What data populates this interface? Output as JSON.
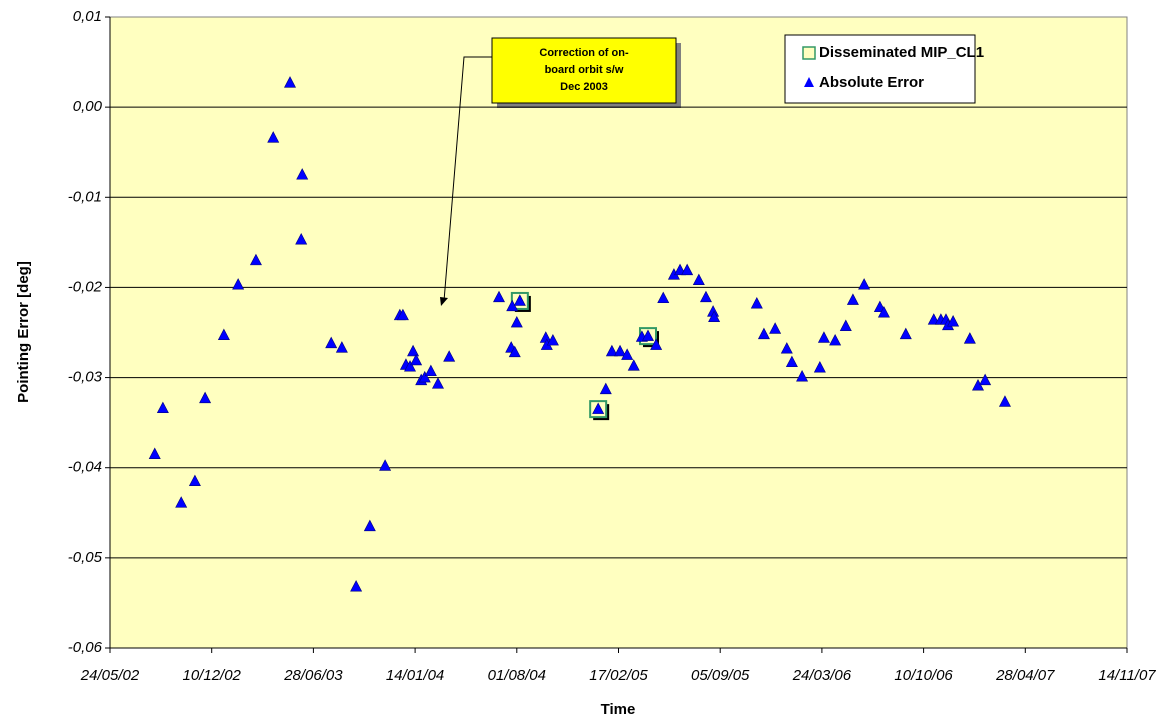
{
  "chart_data": {
    "type": "scatter",
    "x_label": "Time",
    "y_label": "Pointing Error [deg]",
    "annotation": [
      "Correction of on-",
      "board orbit s/w",
      "Dec 2003"
    ],
    "xlim": [
      "24/05/02",
      "14/11/07"
    ],
    "xticks": [
      "24/05/02",
      "10/12/02",
      "28/06/03",
      "14/01/04",
      "01/08/04",
      "17/02/05",
      "05/09/05",
      "24/03/06",
      "10/10/06",
      "28/04/07",
      "14/11/07"
    ],
    "ylim": [
      -0.06,
      0.01
    ],
    "yticks": [
      {
        "value": -0.06,
        "label": "-0,06"
      },
      {
        "value": -0.05,
        "label": "-0,05"
      },
      {
        "value": -0.04,
        "label": "-0,04"
      },
      {
        "value": -0.03,
        "label": "-0,03"
      },
      {
        "value": -0.02,
        "label": "-0,02"
      },
      {
        "value": -0.01,
        "label": "-0,01"
      },
      {
        "value": 0,
        "label": "0,00"
      },
      {
        "value": 0.01,
        "label": "0,01"
      }
    ],
    "grid": true,
    "series": [
      {
        "name": "Disseminated MIP_CL1",
        "marker": "square",
        "color": "#339966",
        "x": [
          "07/08/04",
          "08/01/05",
          "16/04/05"
        ],
        "values": [
          -0.0215,
          -0.0335,
          -0.0254
        ]
      },
      {
        "name": "Absolute Error",
        "marker": "triangle",
        "color": "#0000ff",
        "x": [
          "20/08/02",
          "05/09/02",
          "11/10/02",
          "07/11/02",
          "27/11/02",
          "03/01/03",
          "31/01/03",
          "07/03/03",
          "10/04/03",
          "13/05/03",
          "06/06/03",
          "04/06/03",
          "02/08/03",
          "23/08/03",
          "20/09/03",
          "17/10/03",
          "16/11/03",
          "15/12/03",
          "21/12/03",
          "27/12/03",
          "04/01/04",
          "10/01/04",
          "16/01/04",
          "26/01/04",
          "02/02/04",
          "14/02/04",
          "28/02/04",
          "21/03/04",
          "27/06/04",
          "21/07/04",
          "23/07/04",
          "28/07/04",
          "01/08/04",
          "07/08/04",
          "27/09/04",
          "29/09/04",
          "11/10/04",
          "08/01/05",
          "23/01/05",
          "04/02/05",
          "20/02/05",
          "06/03/05",
          "19/03/05",
          "04/04/05",
          "16/04/05",
          "02/05/05",
          "16/05/05",
          "06/06/05",
          "18/06/05",
          "02/07/05",
          "25/07/05",
          "08/08/05",
          "22/08/05",
          "24/08/05",
          "16/11/05",
          "30/11/05",
          "22/12/05",
          "14/01/06",
          "24/01/06",
          "13/02/06",
          "20/03/06",
          "28/03/06",
          "19/04/06",
          "10/05/06",
          "24/05/06",
          "15/06/06",
          "16/07/06",
          "24/07/06",
          "05/09/06",
          "30/10/06",
          "13/11/06",
          "23/11/06",
          "27/11/06",
          "07/12/06",
          "09/01/07",
          "25/01/07",
          "08/02/07",
          "19/03/07"
        ],
        "values": [
          -0.0385,
          -0.0334,
          -0.0439,
          -0.0415,
          -0.0323,
          -0.0253,
          -0.0197,
          -0.017,
          -0.0034,
          0.0027,
          -0.0075,
          -0.0147,
          -0.0262,
          -0.0267,
          -0.0532,
          -0.0465,
          -0.0398,
          -0.0231,
          -0.0231,
          -0.0286,
          -0.0288,
          -0.0271,
          -0.0281,
          -0.0303,
          -0.03,
          -0.0293,
          -0.0307,
          -0.0277,
          -0.0211,
          -0.0267,
          -0.0221,
          -0.0272,
          -0.0239,
          -0.0215,
          -0.0256,
          -0.0264,
          -0.0259,
          -0.0335,
          -0.0313,
          -0.0271,
          -0.0271,
          -0.0275,
          -0.0287,
          -0.0255,
          -0.0254,
          -0.0264,
          -0.0212,
          -0.0186,
          -0.0181,
          -0.0181,
          -0.0192,
          -0.0211,
          -0.0227,
          -0.0233,
          -0.0218,
          -0.0252,
          -0.0246,
          -0.0268,
          -0.0283,
          -0.0299,
          -0.0289,
          -0.0256,
          -0.0259,
          -0.0243,
          -0.0214,
          -0.0197,
          -0.0222,
          -0.0228,
          -0.0252,
          -0.0236,
          -0.0236,
          -0.0236,
          -0.0242,
          -0.0238,
          -0.0257,
          -0.0309,
          -0.0303,
          -0.0327
        ]
      }
    ]
  }
}
